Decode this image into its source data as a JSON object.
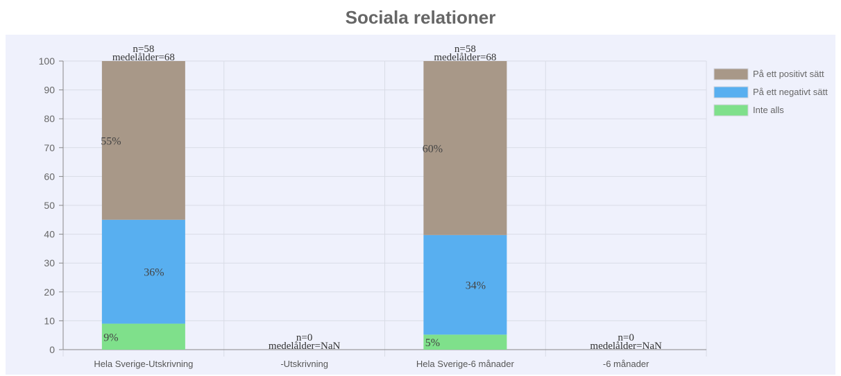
{
  "title": "Sociala relationer",
  "colors": {
    "plot_bg": "#eff1fc",
    "grid": "#d9dce6",
    "axis": "#888888"
  },
  "chart_data": {
    "type": "bar",
    "stacked": true,
    "title": "Sociala relationer",
    "xlabel": "",
    "ylabel": "",
    "ylim": [
      0,
      100
    ],
    "yticks": [
      0,
      10,
      20,
      30,
      40,
      50,
      60,
      70,
      80,
      90,
      100
    ],
    "categories": [
      "Hela Sverige-Utskrivning",
      "-Utskrivning",
      "Hela Sverige-6 månader",
      "-6 månader"
    ],
    "annotations": [
      {
        "n": "n=58",
        "age": "medelålder=68"
      },
      {
        "n": "n=0",
        "age": "medelålder=NaN"
      },
      {
        "n": "n=58",
        "age": "medelålder=68"
      },
      {
        "n": "n=0",
        "age": "medelålder=NaN"
      }
    ],
    "series": [
      {
        "name": "Inte alls",
        "color": "#7fe08b",
        "values": [
          9,
          null,
          5.2,
          null
        ],
        "labels": [
          "9%",
          "",
          "5%",
          ""
        ]
      },
      {
        "name": "På ett negativt sätt",
        "color": "#58aff0",
        "values": [
          36,
          null,
          34.5,
          null
        ],
        "labels": [
          "36%",
          "",
          "34%",
          ""
        ]
      },
      {
        "name": "På ett positivt sätt",
        "color": "#a89888",
        "values": [
          55,
          null,
          60.3,
          null
        ],
        "labels": [
          "55%",
          "",
          "60%",
          ""
        ]
      }
    ],
    "legend_order": [
      "På ett positivt sätt",
      "På ett negativt sätt",
      "Inte alls"
    ],
    "legend_position": "right",
    "grid": true
  }
}
